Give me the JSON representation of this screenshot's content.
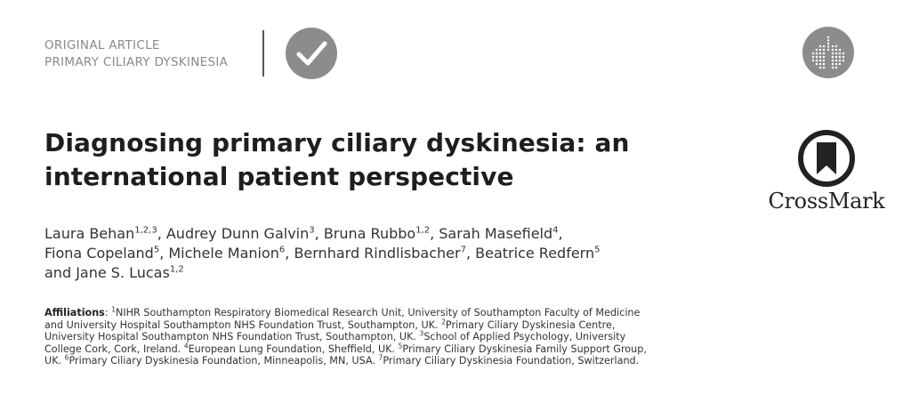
{
  "article_type": {
    "line1": "ORIGINAL ARTICLE",
    "line2": "PRIMARY CILIARY DYSKINESIA"
  },
  "crossmark": {
    "label": "CrossMark"
  },
  "title": {
    "line1": "Diagnosing primary ciliary dyskinesia: an",
    "line2": "international patient perspective"
  },
  "authors": [
    {
      "name": "Laura Behan",
      "aff": "1,2,3"
    },
    {
      "name": "Audrey Dunn Galvin",
      "aff": "3"
    },
    {
      "name": "Bruna Rubbo",
      "aff": "1,2"
    },
    {
      "name": "Sarah Masefield",
      "aff": "4"
    },
    {
      "name": "Fiona Copeland",
      "aff": "5"
    },
    {
      "name": "Michele Manion",
      "aff": "6"
    },
    {
      "name": "Bernhard Rindlisbacher",
      "aff": "7"
    },
    {
      "name": "Beatrice Redfern",
      "aff": "5"
    },
    {
      "name": "Jane S. Lucas",
      "aff": "1,2"
    }
  ],
  "authors_joiner": "and",
  "affiliations": {
    "label": "Affiliations",
    "items": [
      {
        "num": "1",
        "text": "NIHR Southampton Respiratory Biomedical Research Unit, University of Southampton Faculty of Medicine and University Hospital Southampton NHS Foundation Trust, Southampton, UK."
      },
      {
        "num": "2",
        "text": "Primary Ciliary Dyskinesia Centre, University Hospital Southampton NHS Foundation Trust, Southampton, UK."
      },
      {
        "num": "3",
        "text": "School of Applied Psychology, University College Cork, Cork, Ireland."
      },
      {
        "num": "4",
        "text": "European Lung Foundation, Sheffield, UK."
      },
      {
        "num": "5",
        "text": "Primary Ciliary Dyskinesia Family Support Group, UK."
      },
      {
        "num": "6",
        "text": "Primary Ciliary Dyskinesia Foundation, Minneapolis, MN, USA."
      },
      {
        "num": "7",
        "text": "Primary Ciliary Dyskinesia Foundation, Switzerland."
      }
    ]
  },
  "icons": {
    "check": "checkmark-circle-icon",
    "society": "lungs-logo-icon",
    "crossmark": "crossmark-bookmark-icon"
  },
  "colors": {
    "category_text": "#8a8a8a",
    "icon_grey": "#8c8c8c",
    "title": "#1e1e1e",
    "crossmark_ring": "#222222"
  }
}
